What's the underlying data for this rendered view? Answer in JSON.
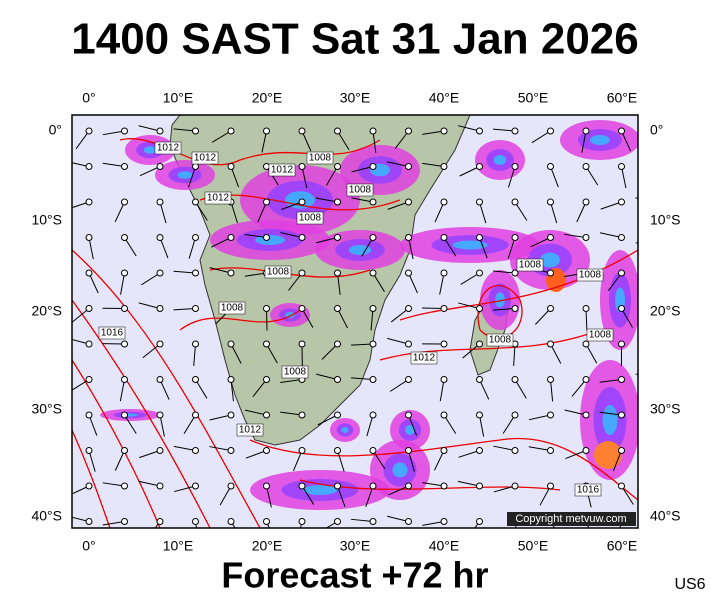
{
  "header": {
    "title": "1400 SAST Sat 31 Jan 2026"
  },
  "lon_labels": [
    "0°",
    "10°E",
    "20°E",
    "30°E",
    "40°E",
    "50°E",
    "60°E"
  ],
  "lat_labels": [
    "0°",
    "10°S",
    "20°S",
    "30°S",
    "40°S"
  ],
  "isobar_labels": [
    "1012",
    "1012",
    "1012",
    "1008",
    "1012",
    "1008",
    "1008",
    "1008",
    "1008",
    "1016",
    "1008",
    "1012",
    "1008",
    "1008",
    "1008",
    "1012",
    "1008",
    "1016"
  ],
  "credit": "Copyright metvuw.com",
  "footer": {
    "forecast": "Forecast +72 hr",
    "code": "US6"
  }
}
